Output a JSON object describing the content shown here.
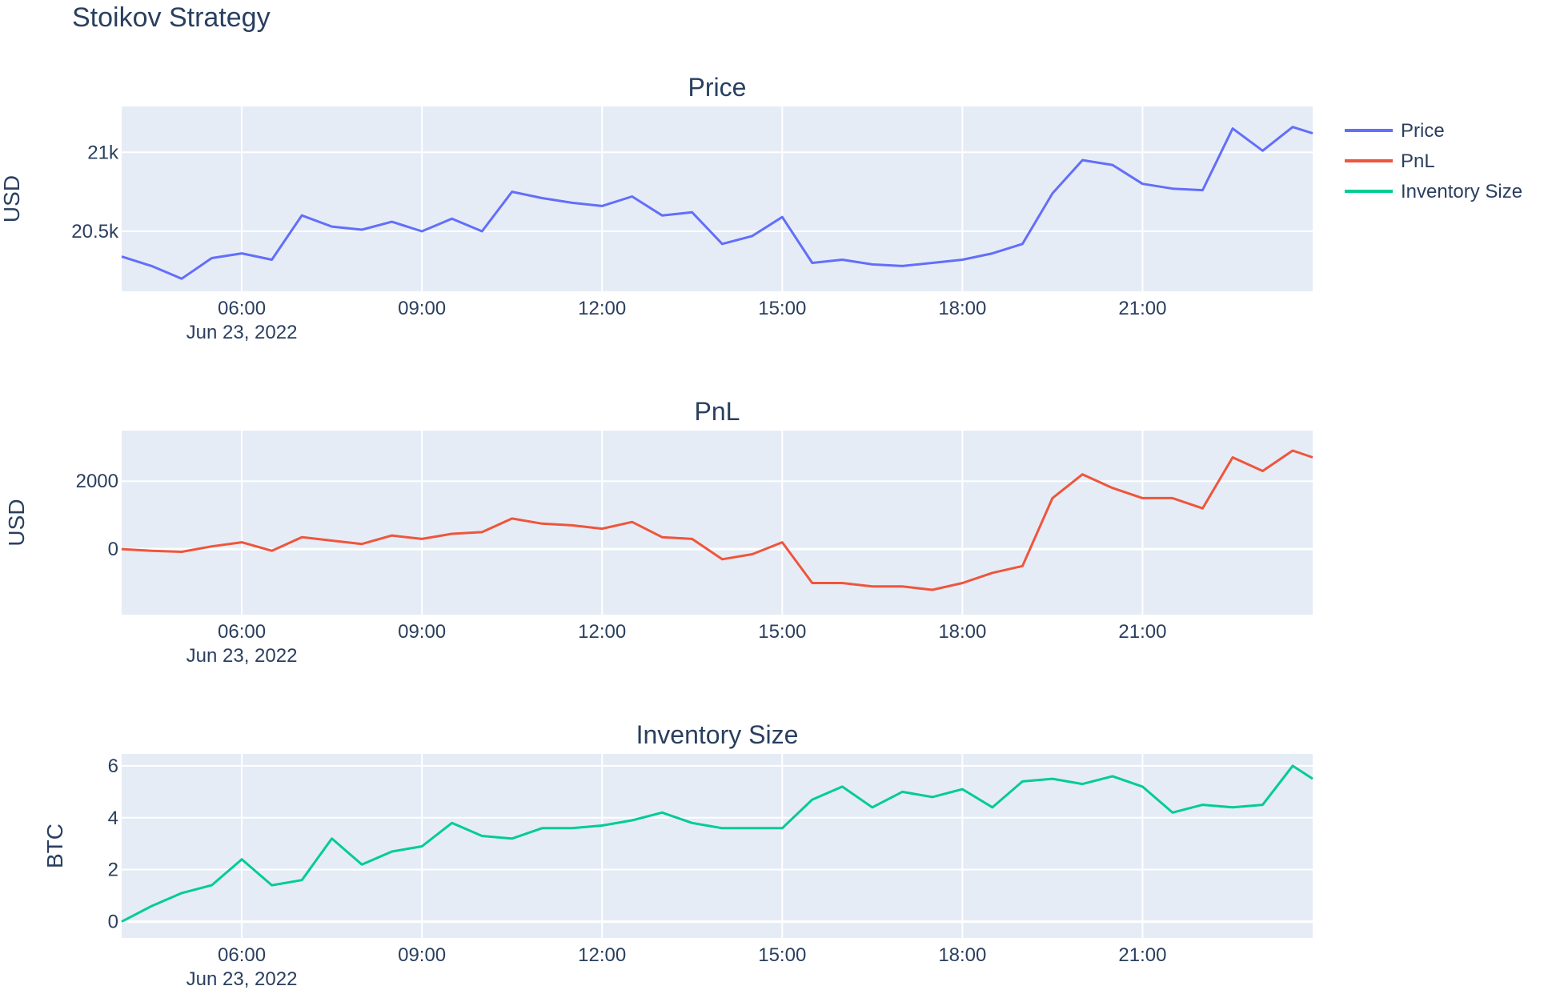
{
  "figure": {
    "title": "Stoikov Strategy",
    "plot_bgcolor": "#E5ECF6",
    "grid_color": "#ffffff",
    "font_color": "#2a3f5f"
  },
  "legend": {
    "placement": "top-right",
    "items": [
      {
        "name": "Price",
        "color": "#636EFA"
      },
      {
        "name": "PnL",
        "color": "#EF553B"
      },
      {
        "name": "Inventory Size",
        "color": "#00CC96"
      }
    ]
  },
  "chart_data": [
    {
      "type": "line",
      "title": "Price",
      "xlabel": "",
      "ylabel": "USD",
      "color": "#636EFA",
      "xlim": [
        "2022-06-23 04:00",
        "2022-06-23 23:50"
      ],
      "ylim": [
        20120,
        21290
      ],
      "x_ticks": [
        "06:00",
        "09:00",
        "12:00",
        "15:00",
        "18:00",
        "21:00"
      ],
      "x_tick_secondary": "Jun 23, 2022",
      "y_ticks": [
        {
          "value": 20500,
          "label": "20.5k"
        },
        {
          "value": 21000,
          "label": "21k"
        }
      ],
      "grid": true,
      "series": [
        {
          "name": "Price",
          "x": [
            "2022-06-23 04:00",
            "2022-06-23 04:30",
            "2022-06-23 05:00",
            "2022-06-23 05:30",
            "2022-06-23 06:00",
            "2022-06-23 06:30",
            "2022-06-23 07:00",
            "2022-06-23 07:30",
            "2022-06-23 08:00",
            "2022-06-23 08:30",
            "2022-06-23 09:00",
            "2022-06-23 09:30",
            "2022-06-23 10:00",
            "2022-06-23 10:30",
            "2022-06-23 11:00",
            "2022-06-23 11:30",
            "2022-06-23 12:00",
            "2022-06-23 12:30",
            "2022-06-23 13:00",
            "2022-06-23 13:30",
            "2022-06-23 14:00",
            "2022-06-23 14:30",
            "2022-06-23 15:00",
            "2022-06-23 15:30",
            "2022-06-23 16:00",
            "2022-06-23 16:30",
            "2022-06-23 17:00",
            "2022-06-23 17:30",
            "2022-06-23 18:00",
            "2022-06-23 18:30",
            "2022-06-23 19:00",
            "2022-06-23 19:30",
            "2022-06-23 20:00",
            "2022-06-23 20:30",
            "2022-06-23 21:00",
            "2022-06-23 21:30",
            "2022-06-23 22:00",
            "2022-06-23 22:30",
            "2022-06-23 23:00",
            "2022-06-23 23:30",
            "2022-06-23 23:50"
          ],
          "y": [
            20340,
            20280,
            20200,
            20330,
            20360,
            20320,
            20600,
            20530,
            20510,
            20560,
            20500,
            20580,
            20500,
            20750,
            20710,
            20680,
            20660,
            20720,
            20600,
            20620,
            20420,
            20470,
            20590,
            20300,
            20320,
            20290,
            20280,
            20300,
            20320,
            20360,
            20420,
            20740,
            20950,
            20920,
            20800,
            20770,
            20760,
            21150,
            21010,
            21160,
            21120
          ]
        }
      ]
    },
    {
      "type": "line",
      "title": "PnL",
      "xlabel": "",
      "ylabel": "USD",
      "color": "#EF553B",
      "xlim": [
        "2022-06-23 04:00",
        "2022-06-23 23:50"
      ],
      "ylim": [
        -1930,
        3490
      ],
      "x_ticks": [
        "06:00",
        "09:00",
        "12:00",
        "15:00",
        "18:00",
        "21:00"
      ],
      "x_tick_secondary": "Jun 23, 2022",
      "y_ticks": [
        {
          "value": 0,
          "label": "0"
        },
        {
          "value": 2000,
          "label": "2000"
        }
      ],
      "grid": true,
      "series": [
        {
          "name": "PnL",
          "x": [
            "2022-06-23 04:00",
            "2022-06-23 04:30",
            "2022-06-23 05:00",
            "2022-06-23 05:30",
            "2022-06-23 06:00",
            "2022-06-23 06:30",
            "2022-06-23 07:00",
            "2022-06-23 07:30",
            "2022-06-23 08:00",
            "2022-06-23 08:30",
            "2022-06-23 09:00",
            "2022-06-23 09:30",
            "2022-06-23 10:00",
            "2022-06-23 10:30",
            "2022-06-23 11:00",
            "2022-06-23 11:30",
            "2022-06-23 12:00",
            "2022-06-23 12:30",
            "2022-06-23 13:00",
            "2022-06-23 13:30",
            "2022-06-23 14:00",
            "2022-06-23 14:30",
            "2022-06-23 15:00",
            "2022-06-23 15:30",
            "2022-06-23 16:00",
            "2022-06-23 16:30",
            "2022-06-23 17:00",
            "2022-06-23 17:30",
            "2022-06-23 18:00",
            "2022-06-23 18:30",
            "2022-06-23 19:00",
            "2022-06-23 19:30",
            "2022-06-23 20:00",
            "2022-06-23 20:30",
            "2022-06-23 21:00",
            "2022-06-23 21:30",
            "2022-06-23 22:00",
            "2022-06-23 22:30",
            "2022-06-23 23:00",
            "2022-06-23 23:30",
            "2022-06-23 23:50"
          ],
          "y": [
            0,
            -50,
            -80,
            80,
            200,
            -50,
            350,
            250,
            150,
            400,
            300,
            450,
            500,
            900,
            750,
            700,
            600,
            800,
            350,
            300,
            -300,
            -150,
            200,
            -1000,
            -1000,
            -1100,
            -1100,
            -1200,
            -1000,
            -700,
            -500,
            1500,
            2200,
            1800,
            1500,
            1500,
            1200,
            2700,
            2300,
            2900,
            2700
          ]
        }
      ]
    },
    {
      "type": "line",
      "title": "Inventory Size",
      "xlabel": "",
      "ylabel": "BTC",
      "color": "#00CC96",
      "xlim": [
        "2022-06-23 04:00",
        "2022-06-23 23:50"
      ],
      "ylim": [
        -0.63,
        6.46
      ],
      "x_ticks": [
        "06:00",
        "09:00",
        "12:00",
        "15:00",
        "18:00",
        "21:00"
      ],
      "x_tick_secondary": "Jun 23, 2022",
      "y_ticks": [
        {
          "value": 0,
          "label": "0"
        },
        {
          "value": 2,
          "label": "2"
        },
        {
          "value": 4,
          "label": "4"
        },
        {
          "value": 6,
          "label": "6"
        }
      ],
      "grid": true,
      "series": [
        {
          "name": "Inventory Size",
          "x": [
            "2022-06-23 04:00",
            "2022-06-23 04:30",
            "2022-06-23 05:00",
            "2022-06-23 05:30",
            "2022-06-23 06:00",
            "2022-06-23 06:30",
            "2022-06-23 07:00",
            "2022-06-23 07:30",
            "2022-06-23 08:00",
            "2022-06-23 08:30",
            "2022-06-23 09:00",
            "2022-06-23 09:30",
            "2022-06-23 10:00",
            "2022-06-23 10:30",
            "2022-06-23 11:00",
            "2022-06-23 11:30",
            "2022-06-23 12:00",
            "2022-06-23 12:30",
            "2022-06-23 13:00",
            "2022-06-23 13:30",
            "2022-06-23 14:00",
            "2022-06-23 14:30",
            "2022-06-23 15:00",
            "2022-06-23 15:30",
            "2022-06-23 16:00",
            "2022-06-23 16:30",
            "2022-06-23 17:00",
            "2022-06-23 17:30",
            "2022-06-23 18:00",
            "2022-06-23 18:30",
            "2022-06-23 19:00",
            "2022-06-23 19:30",
            "2022-06-23 20:00",
            "2022-06-23 20:30",
            "2022-06-23 21:00",
            "2022-06-23 21:30",
            "2022-06-23 22:00",
            "2022-06-23 22:30",
            "2022-06-23 23:00",
            "2022-06-23 23:30",
            "2022-06-23 23:50"
          ],
          "y": [
            0,
            0.6,
            1.1,
            1.4,
            2.4,
            1.4,
            1.6,
            3.2,
            2.2,
            2.7,
            2.9,
            3.8,
            3.3,
            3.2,
            3.6,
            3.6,
            3.7,
            3.9,
            4.2,
            3.8,
            3.6,
            3.6,
            3.6,
            4.7,
            5.2,
            4.4,
            5.0,
            4.8,
            5.1,
            4.4,
            5.4,
            5.5,
            5.3,
            5.6,
            5.2,
            4.2,
            4.5,
            4.4,
            4.5,
            6.0,
            5.5
          ]
        }
      ]
    }
  ]
}
